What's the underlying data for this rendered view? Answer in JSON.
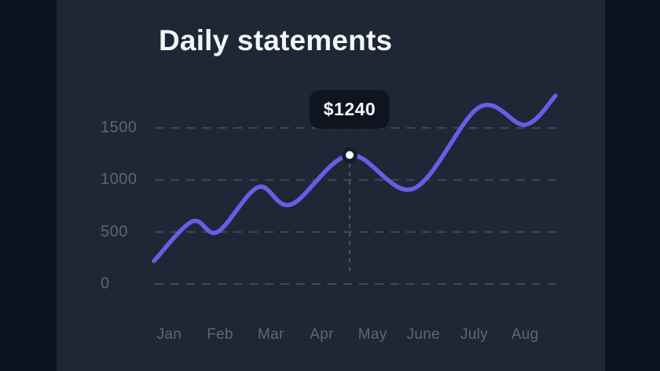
{
  "card": {
    "title": "Daily statements"
  },
  "tooltip": {
    "label": "$1240"
  },
  "colors": {
    "background": "#0a1420",
    "card": "#1d2735",
    "title": "#f2f5f7",
    "axis_label": "#5c6676",
    "grid": "#3f4857",
    "crosshair": "#4a5362",
    "accent": "#6b5ce8",
    "dot_ring": "#151d2b",
    "dot_center": "#ffffff",
    "tooltip_bg": "#0e1520",
    "tooltip_text": "#f5f7fa"
  },
  "chart_data": {
    "type": "line",
    "title": "Daily statements",
    "categories": [
      "Jan",
      "Feb",
      "Mar",
      "Apr",
      "May",
      "June",
      "July",
      "Aug"
    ],
    "y_ticks": [
      0,
      500,
      1000,
      1500
    ],
    "ylim": [
      0,
      1900
    ],
    "xlabel": "",
    "ylabel": "",
    "grid": "horizontal-dashed",
    "legend": "none",
    "x_unit": "month-index (0 = Jan, fractional = between months)",
    "series": [
      {
        "name": "Daily statements",
        "points": [
          [
            -0.3,
            220
          ],
          [
            0.45,
            600
          ],
          [
            0.95,
            500
          ],
          [
            1.75,
            930
          ],
          [
            2.4,
            765
          ],
          [
            3.55,
            1240
          ],
          [
            4.8,
            915
          ],
          [
            6.1,
            1700
          ],
          [
            7.0,
            1530
          ],
          [
            7.6,
            1810
          ]
        ]
      }
    ],
    "highlight": {
      "x": 3.55,
      "value": 1240,
      "label": "$1240"
    }
  }
}
